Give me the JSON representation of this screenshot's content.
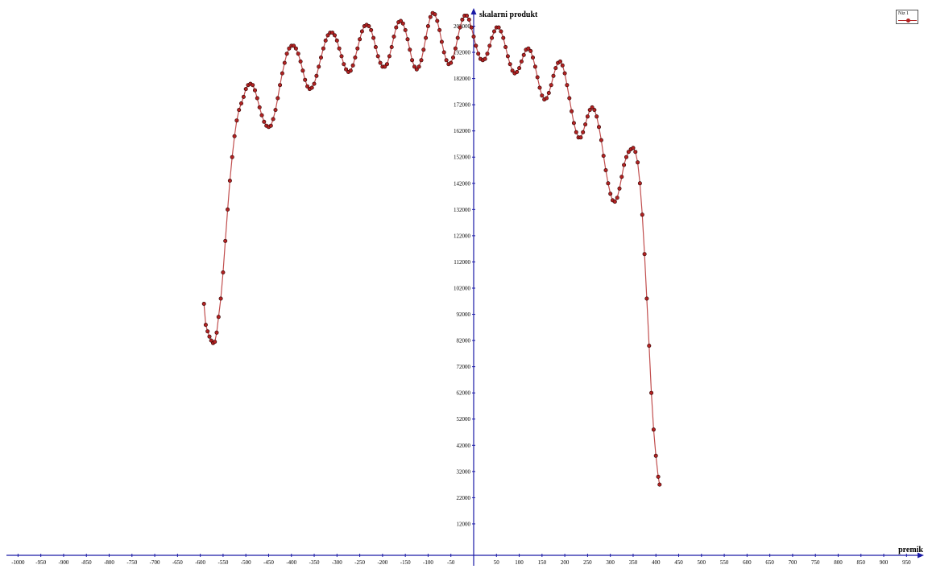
{
  "chart_data": {
    "type": "scatter",
    "xlabel": "premik",
    "ylabel": "skalarni produkt",
    "xlim": [
      -1000,
      1000
    ],
    "ylim": [
      0,
      207000
    ],
    "x_ticks": [
      -1000,
      -950,
      -900,
      -850,
      -800,
      -750,
      -700,
      -650,
      -600,
      -550,
      -500,
      -450,
      -400,
      -350,
      -300,
      -250,
      -200,
      -150,
      -100,
      -50,
      50,
      100,
      150,
      200,
      250,
      300,
      350,
      400,
      450,
      500,
      550,
      600,
      650,
      700,
      750,
      800,
      850,
      900,
      950
    ],
    "y_ticks": [
      12000,
      22000,
      32000,
      42000,
      52000,
      62000,
      72000,
      82000,
      92000,
      102000,
      112000,
      122000,
      132000,
      142000,
      152000,
      162000,
      172000,
      182000,
      192000,
      202000
    ],
    "legend": {
      "label": "Niz 1",
      "placement": "top-right"
    },
    "colors": {
      "axis": "#1a1aa6",
      "marker": "#b22222",
      "marker_edge": "#2a0000"
    },
    "series": [
      {
        "name": "Niz 1",
        "points": [
          [
            -592,
            96000
          ],
          [
            -588,
            88000
          ],
          [
            -584,
            85500
          ],
          [
            -580,
            83500
          ],
          [
            -576,
            82000
          ],
          [
            -572,
            81000
          ],
          [
            -568,
            81500
          ],
          [
            -564,
            85000
          ],
          [
            -560,
            91000
          ],
          [
            -555,
            98000
          ],
          [
            -550,
            108000
          ],
          [
            -545,
            120000
          ],
          [
            -540,
            132000
          ],
          [
            -535,
            143000
          ],
          [
            -530,
            152000
          ],
          [
            -525,
            160000
          ],
          [
            -520,
            166000
          ],
          [
            -515,
            170000
          ],
          [
            -510,
            172500
          ],
          [
            -505,
            175000
          ],
          [
            -500,
            178000
          ],
          [
            -495,
            179500
          ],
          [
            -490,
            180000
          ],
          [
            -485,
            179500
          ],
          [
            -480,
            177500
          ],
          [
            -475,
            174500
          ],
          [
            -470,
            171000
          ],
          [
            -465,
            168000
          ],
          [
            -460,
            165500
          ],
          [
            -455,
            164000
          ],
          [
            -450,
            163500
          ],
          [
            -445,
            164000
          ],
          [
            -440,
            166500
          ],
          [
            -435,
            170000
          ],
          [
            -430,
            174500
          ],
          [
            -425,
            179500
          ],
          [
            -420,
            184000
          ],
          [
            -415,
            188000
          ],
          [
            -410,
            191500
          ],
          [
            -405,
            193500
          ],
          [
            -400,
            194500
          ],
          [
            -395,
            194500
          ],
          [
            -390,
            193500
          ],
          [
            -385,
            191500
          ],
          [
            -380,
            188500
          ],
          [
            -375,
            185000
          ],
          [
            -370,
            181500
          ],
          [
            -365,
            179000
          ],
          [
            -360,
            178000
          ],
          [
            -355,
            178500
          ],
          [
            -350,
            180000
          ],
          [
            -345,
            183000
          ],
          [
            -340,
            186500
          ],
          [
            -335,
            190000
          ],
          [
            -330,
            193500
          ],
          [
            -325,
            196500
          ],
          [
            -320,
            198500
          ],
          [
            -315,
            199500
          ],
          [
            -310,
            199500
          ],
          [
            -305,
            198500
          ],
          [
            -300,
            196500
          ],
          [
            -295,
            193500
          ],
          [
            -290,
            190500
          ],
          [
            -285,
            187500
          ],
          [
            -280,
            185500
          ],
          [
            -275,
            184500
          ],
          [
            -270,
            185000
          ],
          [
            -265,
            187000
          ],
          [
            -260,
            190000
          ],
          [
            -255,
            193500
          ],
          [
            -250,
            197000
          ],
          [
            -245,
            200000
          ],
          [
            -240,
            202000
          ],
          [
            -235,
            202500
          ],
          [
            -230,
            202000
          ],
          [
            -225,
            200500
          ],
          [
            -220,
            197500
          ],
          [
            -215,
            194000
          ],
          [
            -210,
            190500
          ],
          [
            -205,
            188000
          ],
          [
            -200,
            186500
          ],
          [
            -195,
            186500
          ],
          [
            -190,
            187500
          ],
          [
            -185,
            190500
          ],
          [
            -180,
            194000
          ],
          [
            -175,
            198000
          ],
          [
            -170,
            201500
          ],
          [
            -165,
            203500
          ],
          [
            -160,
            204000
          ],
          [
            -155,
            203000
          ],
          [
            -150,
            200500
          ],
          [
            -145,
            197000
          ],
          [
            -140,
            193000
          ],
          [
            -135,
            189000
          ],
          [
            -130,
            186500
          ],
          [
            -125,
            185500
          ],
          [
            -120,
            186500
          ],
          [
            -115,
            189000
          ],
          [
            -110,
            193000
          ],
          [
            -105,
            197500
          ],
          [
            -100,
            202000
          ],
          [
            -95,
            205500
          ],
          [
            -90,
            207000
          ],
          [
            -85,
            206500
          ],
          [
            -80,
            204000
          ],
          [
            -75,
            200500
          ],
          [
            -70,
            196000
          ],
          [
            -65,
            192000
          ],
          [
            -60,
            189000
          ],
          [
            -55,
            187500
          ],
          [
            -50,
            188000
          ],
          [
            -45,
            190000
          ],
          [
            -40,
            193500
          ],
          [
            -35,
            197500
          ],
          [
            -30,
            201500
          ],
          [
            -25,
            204500
          ],
          [
            -20,
            206000
          ],
          [
            -15,
            206000
          ],
          [
            -10,
            204500
          ],
          [
            -5,
            201500
          ],
          [
            0,
            198000
          ],
          [
            5,
            194500
          ],
          [
            10,
            191500
          ],
          [
            15,
            189500
          ],
          [
            20,
            189000
          ],
          [
            25,
            189500
          ],
          [
            30,
            191500
          ],
          [
            35,
            194500
          ],
          [
            40,
            197500
          ],
          [
            45,
            200000
          ],
          [
            50,
            201500
          ],
          [
            55,
            201500
          ],
          [
            60,
            200000
          ],
          [
            65,
            197500
          ],
          [
            70,
            194000
          ],
          [
            75,
            190500
          ],
          [
            80,
            187500
          ],
          [
            85,
            185000
          ],
          [
            90,
            184000
          ],
          [
            95,
            184500
          ],
          [
            100,
            186000
          ],
          [
            105,
            188500
          ],
          [
            110,
            191000
          ],
          [
            115,
            193000
          ],
          [
            120,
            193500
          ],
          [
            125,
            192500
          ],
          [
            130,
            190000
          ],
          [
            135,
            186500
          ],
          [
            140,
            182500
          ],
          [
            145,
            178500
          ],
          [
            150,
            175500
          ],
          [
            155,
            174000
          ],
          [
            160,
            174500
          ],
          [
            165,
            176500
          ],
          [
            170,
            179500
          ],
          [
            175,
            183000
          ],
          [
            180,
            186000
          ],
          [
            185,
            188000
          ],
          [
            190,
            188500
          ],
          [
            195,
            187000
          ],
          [
            200,
            184000
          ],
          [
            205,
            179500
          ],
          [
            210,
            174500
          ],
          [
            215,
            169500
          ],
          [
            220,
            165000
          ],
          [
            225,
            161500
          ],
          [
            230,
            159500
          ],
          [
            235,
            159500
          ],
          [
            240,
            161500
          ],
          [
            245,
            164500
          ],
          [
            250,
            167500
          ],
          [
            255,
            170000
          ],
          [
            260,
            171000
          ],
          [
            265,
            170000
          ],
          [
            270,
            167500
          ],
          [
            275,
            163500
          ],
          [
            280,
            158500
          ],
          [
            285,
            152500
          ],
          [
            290,
            147000
          ],
          [
            295,
            142000
          ],
          [
            300,
            138000
          ],
          [
            305,
            135500
          ],
          [
            310,
            135000
          ],
          [
            315,
            136500
          ],
          [
            320,
            140000
          ],
          [
            325,
            144500
          ],
          [
            330,
            149000
          ],
          [
            335,
            152000
          ],
          [
            340,
            154000
          ],
          [
            345,
            155000
          ],
          [
            350,
            155500
          ],
          [
            355,
            154000
          ],
          [
            360,
            150000
          ],
          [
            365,
            142000
          ],
          [
            370,
            130000
          ],
          [
            375,
            115000
          ],
          [
            380,
            98000
          ],
          [
            385,
            80000
          ],
          [
            390,
            62000
          ],
          [
            395,
            48000
          ],
          [
            400,
            38000
          ],
          [
            405,
            30000
          ],
          [
            408,
            27000
          ]
        ]
      }
    ]
  }
}
